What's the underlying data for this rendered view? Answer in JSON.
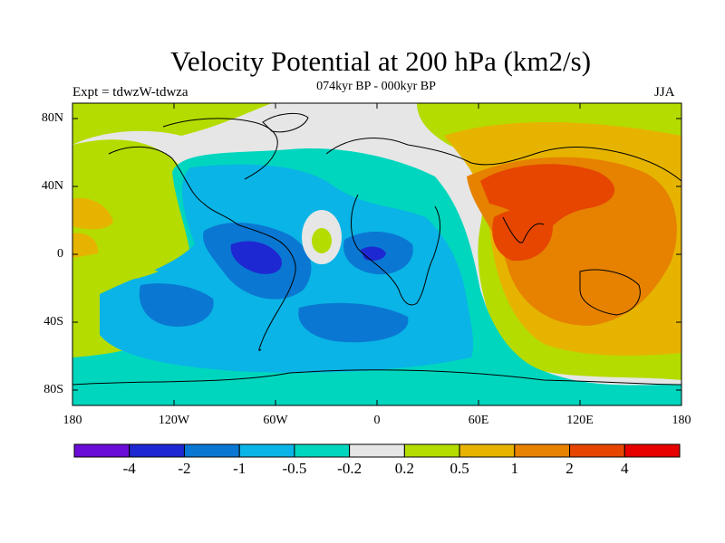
{
  "title": "Velocity Potential at 200 hPa (km2/s)",
  "subtitle": "074kyr BP - 000kyr BP",
  "experiment_label": "Expt = tdwzW-tdwza",
  "season": "JJA",
  "lat_ticks": [
    "80N",
    "40N",
    "0",
    "40S",
    "80S"
  ],
  "lon_ticks": [
    "180",
    "120W",
    "60W",
    "0",
    "60E",
    "120E",
    "180"
  ],
  "colorbar": {
    "colors": [
      "#6a0dd6",
      "#1e28d2",
      "#0a78d2",
      "#0ab4e6",
      "#00d6be",
      "#e6e6e6",
      "#b4dc00",
      "#e6b400",
      "#e68200",
      "#e64600",
      "#e60000"
    ],
    "labels": [
      "-4",
      "-2",
      "-1",
      "-0.5",
      "-0.2",
      "0.2",
      "0.5",
      "1",
      "2",
      "4"
    ]
  }
}
